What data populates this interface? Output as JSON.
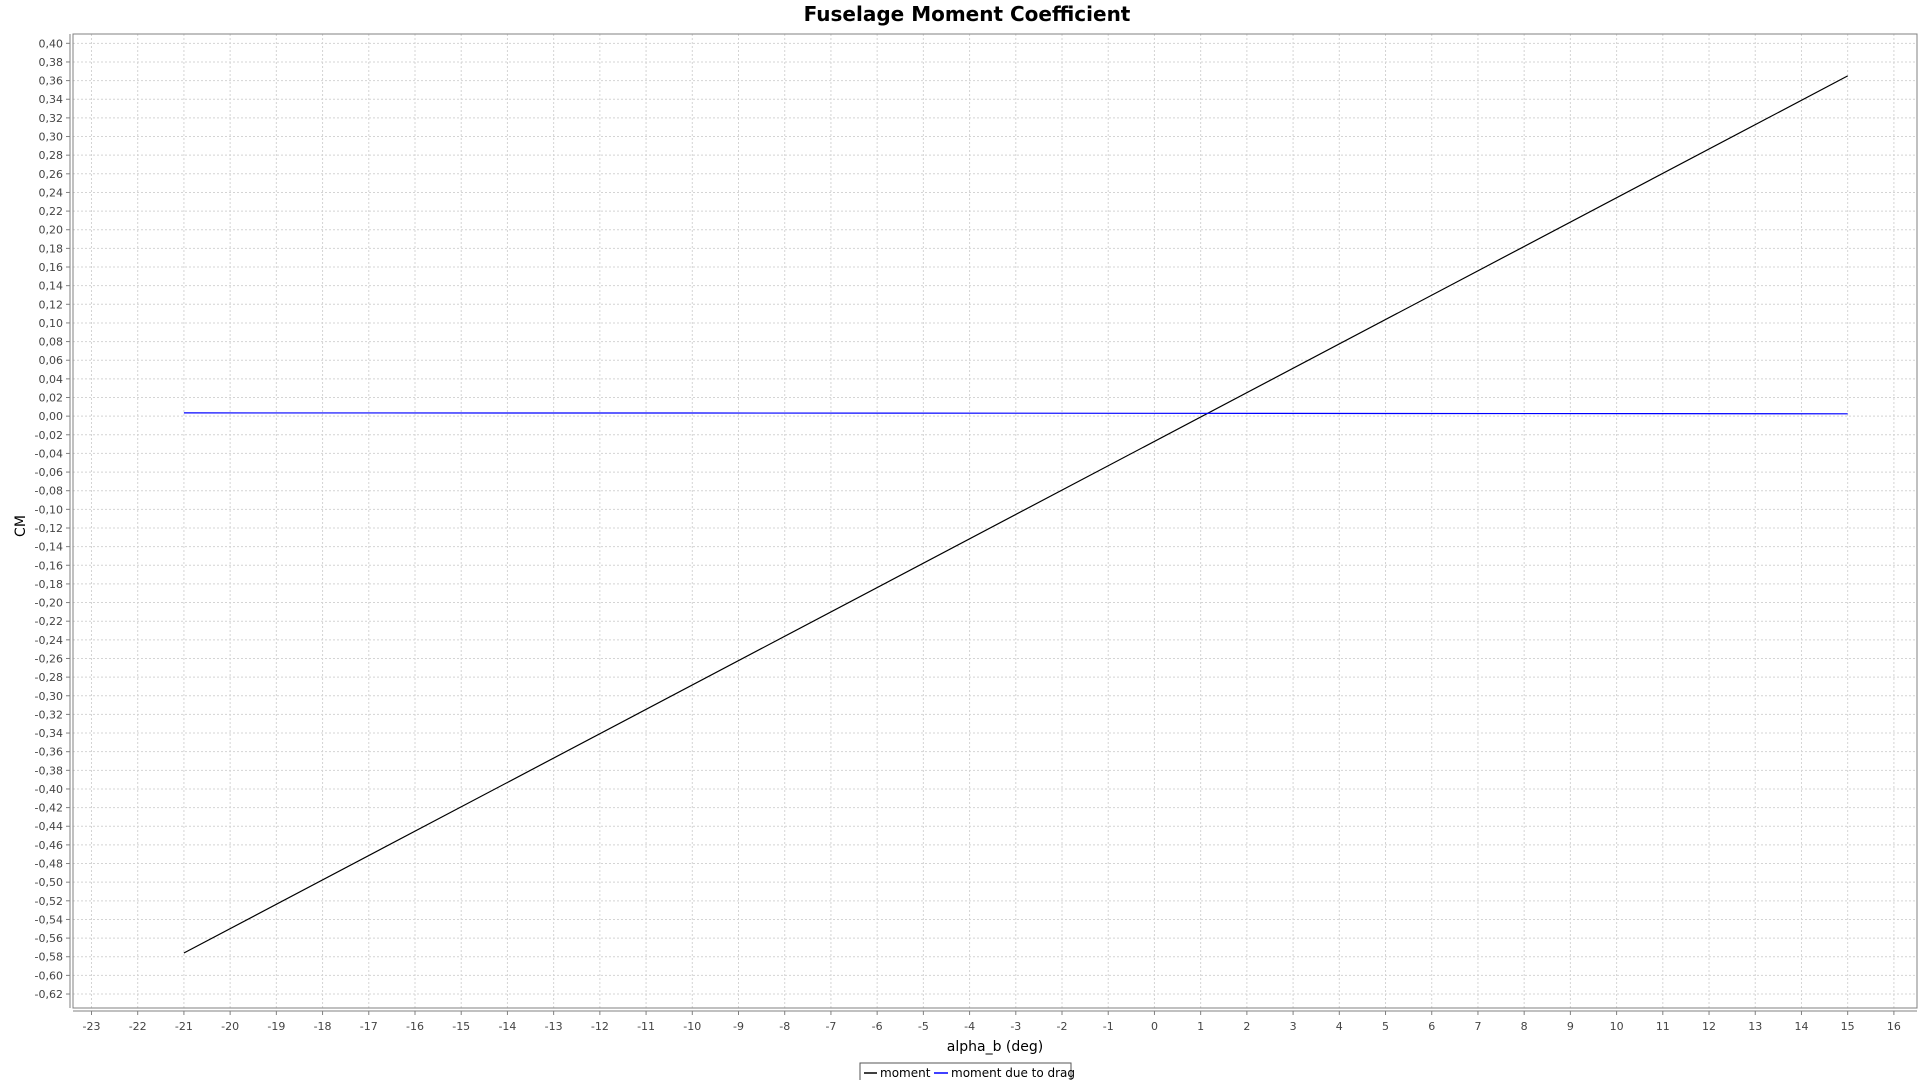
{
  "chart_data": {
    "type": "line",
    "title": "Fuselage Moment Coefficient",
    "xlabel": "alpha_b (deg)",
    "ylabel": "CM",
    "xlim": [
      -23.4,
      16.5
    ],
    "ylim": [
      -0.635,
      0.41
    ],
    "x_ticks": [
      -23,
      -22,
      -21,
      -20,
      -19,
      -18,
      -17,
      -16,
      -15,
      -14,
      -13,
      -12,
      -11,
      -10,
      -9,
      -8,
      -7,
      -6,
      -5,
      -4,
      -3,
      -2,
      -1,
      0,
      1,
      2,
      3,
      4,
      5,
      6,
      7,
      8,
      9,
      10,
      11,
      12,
      13,
      14,
      15,
      16
    ],
    "y_ticks": [
      "0,40",
      "0,38",
      "0,36",
      "0,34",
      "0,32",
      "0,30",
      "0,28",
      "0,26",
      "0,24",
      "0,22",
      "0,20",
      "0,18",
      "0,16",
      "0,14",
      "0,12",
      "0,10",
      "0,08",
      "0,06",
      "0,04",
      "0,02",
      "0,00",
      "-0,02",
      "-0,04",
      "-0,06",
      "-0,08",
      "-0,10",
      "-0,12",
      "-0,14",
      "-0,16",
      "-0,18",
      "-0,20",
      "-0,22",
      "-0,24",
      "-0,26",
      "-0,28",
      "-0,30",
      "-0,32",
      "-0,34",
      "-0,36",
      "-0,38",
      "-0,40",
      "-0,42",
      "-0,44",
      "-0,46",
      "-0,48",
      "-0,50",
      "-0,52",
      "-0,54",
      "-0,56",
      "-0,58",
      "-0,60",
      "-0,62"
    ],
    "grid": true,
    "legend_position": "bottom-center",
    "series": [
      {
        "name": "moment",
        "color": "#000000",
        "x": [
          -21,
          15
        ],
        "y": [
          -0.576,
          0.365
        ]
      },
      {
        "name": "moment due to drag",
        "color": "#0000ff",
        "x": [
          -21,
          -10,
          0,
          15
        ],
        "y": [
          0.0035,
          0.0034,
          0.003,
          0.0025
        ]
      }
    ]
  }
}
